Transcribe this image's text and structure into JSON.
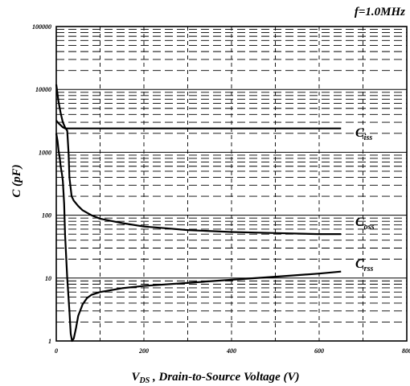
{
  "chart_data": {
    "type": "line",
    "annotation": "f=1.0MHz",
    "xlabel": {
      "main": "V",
      "sub": "DS",
      "rest": " , Drain-to-Source Voltage (V)"
    },
    "ylabel": "C (pF)",
    "xlim": [
      0,
      800
    ],
    "ylim": [
      1,
      100000
    ],
    "yscale": "log",
    "x_ticks": [
      0,
      200,
      400,
      600,
      800
    ],
    "x_tick_labels": [
      "0",
      "200",
      "400",
      "600",
      "800"
    ],
    "y_ticks": [
      1,
      10,
      100,
      1000,
      10000,
      100000
    ],
    "y_tick_labels": [
      "1",
      "10",
      "100",
      "1000",
      "10000",
      "100000"
    ],
    "grid": true,
    "series": [
      {
        "name": "C",
        "sub": "iss",
        "color": "#000000",
        "points": [
          [
            0,
            3200
          ],
          [
            5,
            2900
          ],
          [
            10,
            2700
          ],
          [
            15,
            2500
          ],
          [
            20,
            2400
          ],
          [
            25,
            2400
          ],
          [
            50,
            2400
          ],
          [
            100,
            2400
          ],
          [
            200,
            2400
          ],
          [
            300,
            2400
          ],
          [
            400,
            2400
          ],
          [
            500,
            2400
          ],
          [
            600,
            2400
          ],
          [
            650,
            2400
          ]
        ]
      },
      {
        "name": "C",
        "sub": "oss",
        "color": "#000000",
        "points": [
          [
            0,
            12000
          ],
          [
            5,
            6500
          ],
          [
            10,
            4200
          ],
          [
            15,
            3000
          ],
          [
            20,
            2500
          ],
          [
            25,
            2200
          ],
          [
            28,
            1000
          ],
          [
            30,
            400
          ],
          [
            35,
            200
          ],
          [
            40,
            170
          ],
          [
            50,
            140
          ],
          [
            60,
            120
          ],
          [
            80,
            100
          ],
          [
            100,
            88
          ],
          [
            150,
            75
          ],
          [
            200,
            66
          ],
          [
            250,
            62
          ],
          [
            300,
            58
          ],
          [
            400,
            54
          ],
          [
            500,
            52
          ],
          [
            600,
            50
          ],
          [
            650,
            50
          ]
        ]
      },
      {
        "name": "C",
        "sub": "rss",
        "color": "#000000",
        "points": [
          [
            0,
            2000
          ],
          [
            3,
            1500
          ],
          [
            5,
            1100
          ],
          [
            8,
            800
          ],
          [
            10,
            600
          ],
          [
            13,
            450
          ],
          [
            15,
            350
          ],
          [
            18,
            150
          ],
          [
            20,
            50
          ],
          [
            25,
            10
          ],
          [
            30,
            3
          ],
          [
            33,
            1.3
          ],
          [
            36,
            1.0
          ],
          [
            40,
            1.1
          ],
          [
            45,
            1.6
          ],
          [
            50,
            2.5
          ],
          [
            60,
            3.8
          ],
          [
            70,
            4.8
          ],
          [
            80,
            5.4
          ],
          [
            100,
            6.0
          ],
          [
            150,
            6.9
          ],
          [
            200,
            7.5
          ],
          [
            300,
            8.4
          ],
          [
            400,
            9.4
          ],
          [
            500,
            10.5
          ],
          [
            600,
            11.8
          ],
          [
            650,
            12.7
          ]
        ]
      }
    ]
  }
}
